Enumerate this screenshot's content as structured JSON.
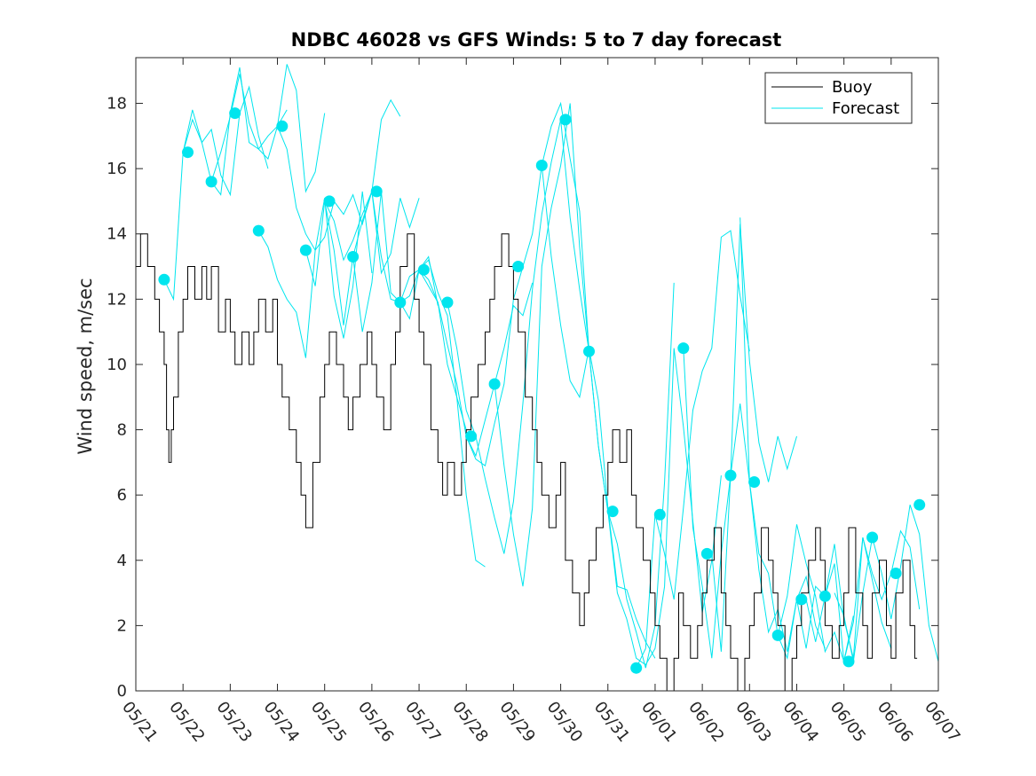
{
  "chart_data": {
    "type": "line",
    "title": "NDBC 46028 vs GFS Winds: 5 to 7 day forecast",
    "xlabel": "",
    "ylabel": "Wind speed, m/sec",
    "xlim": [
      0,
      17
    ],
    "ylim": [
      0,
      19.4
    ],
    "x_tick_values": [
      0,
      1,
      2,
      3,
      4,
      5,
      6,
      7,
      8,
      9,
      10,
      11,
      12,
      13,
      14,
      15,
      16,
      17
    ],
    "x_tick_labels": [
      "05/21",
      "05/22",
      "05/23",
      "05/24",
      "05/25",
      "05/26",
      "05/27",
      "05/28",
      "05/29",
      "05/30",
      "05/31",
      "06/01",
      "06/02",
      "06/03",
      "06/04",
      "06/05",
      "06/06",
      "06/07"
    ],
    "y_ticks": [
      0,
      2,
      4,
      6,
      8,
      10,
      12,
      14,
      16,
      18
    ],
    "grid": false,
    "legend_position": "top-right",
    "legend": [
      {
        "label": "Buoy",
        "color": "#000000"
      },
      {
        "label": "Forecast",
        "color": "#00e5ee"
      }
    ],
    "buoy": {
      "name": "Buoy",
      "color": "#000000",
      "x": [
        0,
        0.1,
        0.25,
        0.4,
        0.5,
        0.6,
        0.65,
        0.7,
        0.75,
        0.8,
        0.9,
        1.0,
        1.1,
        1.25,
        1.4,
        1.5,
        1.6,
        1.75,
        1.9,
        2.0,
        2.1,
        2.25,
        2.4,
        2.5,
        2.6,
        2.75,
        2.9,
        3.0,
        3.1,
        3.25,
        3.4,
        3.5,
        3.6,
        3.75,
        3.9,
        4.0,
        4.1,
        4.25,
        4.4,
        4.5,
        4.6,
        4.75,
        4.9,
        5.0,
        5.1,
        5.25,
        5.4,
        5.5,
        5.6,
        5.75,
        5.9,
        6.0,
        6.1,
        6.25,
        6.4,
        6.5,
        6.6,
        6.75,
        6.9,
        7.0,
        7.1,
        7.25,
        7.4,
        7.5,
        7.6,
        7.75,
        7.9,
        8.0,
        8.1,
        8.25,
        8.4,
        8.5,
        8.6,
        8.75,
        8.9,
        9.0,
        9.1,
        9.25,
        9.4,
        9.5,
        9.6,
        9.75,
        9.9,
        10.0,
        10.1,
        10.25,
        10.4,
        10.5,
        10.6,
        10.75,
        10.9,
        11.0,
        11.1,
        11.25,
        11.4,
        11.5,
        11.6,
        11.75,
        11.9,
        12.0,
        12.1,
        12.25,
        12.4,
        12.5,
        12.6,
        12.75,
        12.9,
        13.0,
        13.1,
        13.25,
        13.4,
        13.5,
        13.6,
        13.75,
        13.9,
        14.0,
        14.1,
        14.25,
        14.4,
        14.5,
        14.6,
        14.75,
        14.9,
        15.0,
        15.1,
        15.25,
        15.4,
        15.5,
        15.6,
        15.75,
        15.9,
        16.0,
        16.1,
        16.25,
        16.4,
        16.5
      ],
      "y": [
        13,
        14,
        13,
        12,
        11,
        10,
        8,
        7,
        8,
        9,
        11,
        12,
        13,
        12,
        13,
        12,
        13,
        11,
        12,
        11,
        10,
        11,
        10,
        11,
        12,
        11,
        12,
        10,
        9,
        8,
        7,
        6,
        5,
        7,
        9,
        10,
        11,
        10,
        9,
        8,
        9,
        10,
        11,
        10,
        9,
        8,
        10,
        11,
        13,
        14,
        12,
        11,
        10,
        8,
        7,
        6,
        7,
        6,
        7,
        8,
        9,
        10,
        11,
        12,
        13,
        14,
        13,
        12,
        11,
        9,
        8,
        7,
        6,
        5,
        6,
        7,
        4,
        3,
        2,
        3,
        4,
        5,
        6,
        7,
        8,
        7,
        8,
        6,
        5,
        4,
        3,
        2,
        1,
        0,
        1,
        3,
        2,
        1,
        2,
        3,
        4,
        5,
        3,
        2,
        1,
        0,
        1,
        2,
        3,
        5,
        4,
        3,
        2,
        0,
        1,
        2,
        3,
        4,
        5,
        4,
        2,
        1,
        2,
        3,
        5,
        3,
        2,
        1,
        3,
        4,
        2,
        1,
        3,
        4,
        2,
        1
      ]
    },
    "forecast_series": [
      {
        "name": "Forecast",
        "x": [
          0.6,
          0.8,
          1.0,
          1.2,
          1.4,
          1.6,
          1.8,
          2.0,
          2.2,
          2.4,
          2.6,
          2.8
        ],
        "y": [
          12.6,
          12.0,
          16.5,
          17.5,
          16.8,
          17.2,
          15.8,
          15.2,
          17.7,
          18.5,
          17.0,
          16.0
        ]
      },
      {
        "name": "Forecast",
        "x": [
          1.0,
          1.2,
          1.4,
          1.6,
          1.8,
          2.0,
          2.2,
          2.4,
          2.6,
          2.8,
          3.0,
          3.2
        ],
        "y": [
          16.5,
          17.8,
          16.8,
          15.6,
          16.5,
          17.6,
          18.9,
          17.4,
          16.6,
          16.3,
          17.3,
          17.8
        ]
      },
      {
        "name": "Forecast",
        "x": [
          1.6,
          1.8,
          2.0,
          2.2,
          2.4,
          2.6,
          2.8,
          3.0,
          3.2,
          3.4,
          3.6,
          3.8,
          4.0
        ],
        "y": [
          15.6,
          15.2,
          17.7,
          19.1,
          16.8,
          16.6,
          17.0,
          17.3,
          19.2,
          18.4,
          15.3,
          15.9,
          17.7
        ]
      },
      {
        "name": "Forecast",
        "x": [
          2.6,
          2.8,
          3.0,
          3.2,
          3.4,
          3.6,
          3.8,
          4.0,
          4.2,
          4.4,
          4.6,
          4.8,
          5.0
        ],
        "y": [
          14.1,
          13.6,
          12.6,
          12.0,
          11.6,
          10.2,
          13.5,
          15.1,
          12.1,
          10.8,
          12.4,
          15.3,
          12.8
        ]
      },
      {
        "name": "Forecast",
        "x": [
          3.0,
          3.2,
          3.4,
          3.6,
          3.8,
          4.0,
          4.2,
          4.4,
          4.6,
          4.8,
          5.0,
          5.2,
          5.4,
          5.6
        ],
        "y": [
          17.3,
          16.6,
          14.8,
          14.0,
          13.5,
          13.9,
          15.0,
          14.6,
          15.2,
          14.3,
          15.3,
          17.5,
          18.1,
          17.6
        ]
      },
      {
        "name": "Forecast",
        "x": [
          3.6,
          3.8,
          4.0,
          4.2,
          4.4,
          4.6,
          4.8,
          5.0,
          5.2,
          5.4,
          5.6,
          5.8,
          6.0
        ],
        "y": [
          13.5,
          12.4,
          15.0,
          14.4,
          13.2,
          13.8,
          14.6,
          15.3,
          12.8,
          13.4,
          15.1,
          14.2,
          15.1
        ]
      },
      {
        "name": "Forecast",
        "x": [
          4.0,
          4.2,
          4.4,
          4.6,
          4.8,
          5.0,
          5.2,
          5.4,
          5.6,
          5.8,
          6.0,
          6.2,
          6.4
        ],
        "y": [
          15.0,
          13.5,
          11.2,
          13.3,
          14.4,
          15.3,
          13.3,
          12.0,
          11.9,
          12.1,
          12.9,
          13.3,
          11.8
        ]
      },
      {
        "name": "Forecast",
        "x": [
          4.6,
          4.8,
          5.0,
          5.2,
          5.4,
          5.6,
          5.8,
          6.0,
          6.2,
          6.4,
          6.6,
          6.8,
          7.0
        ],
        "y": [
          13.3,
          11.0,
          12.5,
          15.3,
          12.2,
          11.9,
          12.7,
          12.9,
          12.6,
          11.9,
          10.0,
          9.0,
          8.0
        ]
      },
      {
        "name": "Forecast",
        "x": [
          5.6,
          5.8,
          6.0,
          6.2,
          6.4,
          6.6,
          6.8,
          7.0,
          7.2,
          7.4
        ],
        "y": [
          11.9,
          11.4,
          12.9,
          13.2,
          12.2,
          11.5,
          9.0,
          6.0,
          4.0,
          3.8
        ]
      },
      {
        "name": "Forecast",
        "x": [
          6.0,
          6.2,
          6.4,
          6.6,
          6.8,
          7.0,
          7.2,
          7.4,
          7.6,
          7.8,
          8.0,
          8.2,
          8.4
        ],
        "y": [
          12.9,
          12.4,
          11.9,
          10.6,
          9.4,
          7.8,
          7.2,
          8.3,
          9.4,
          10.5,
          11.8,
          11.5,
          12.5
        ]
      },
      {
        "name": "Forecast",
        "x": [
          6.6,
          6.8,
          7.0,
          7.2,
          7.4,
          7.6,
          7.8,
          8.0,
          8.2,
          8.4,
          8.6,
          8.8,
          9.0
        ],
        "y": [
          11.9,
          10.5,
          8.6,
          7.8,
          6.5,
          5.3,
          4.2,
          5.8,
          8.8,
          12.3,
          14.6,
          16.2,
          17.5
        ]
      },
      {
        "name": "Forecast",
        "x": [
          7.0,
          7.2,
          7.4,
          7.6,
          7.8,
          8.0,
          8.2,
          8.4,
          8.6,
          8.8,
          9.0,
          9.2,
          9.4,
          9.6
        ],
        "y": [
          7.8,
          7.1,
          6.9,
          8.2,
          9.4,
          12.0,
          13.0,
          14.0,
          16.1,
          17.3,
          18.0,
          16.3,
          14.7,
          10.4
        ]
      },
      {
        "name": "Forecast",
        "x": [
          7.6,
          7.8,
          8.0,
          8.2,
          8.4,
          8.6,
          8.8,
          9.0,
          9.2,
          9.4,
          9.6,
          9.8,
          10.0
        ],
        "y": [
          9.4,
          6.9,
          4.8,
          3.2,
          5.6,
          13.0,
          14.8,
          16.1,
          18.0,
          13.6,
          10.4,
          7.5,
          5.5
        ]
      },
      {
        "name": "Forecast",
        "x": [
          8.6,
          8.8,
          9.0,
          9.2,
          9.4,
          9.6,
          9.8,
          10.0,
          10.2,
          10.4,
          10.6,
          10.8,
          11.0
        ],
        "y": [
          16.1,
          13.3,
          11.2,
          9.5,
          9.0,
          10.5,
          8.9,
          5.6,
          3.2,
          3.1,
          2.2,
          1.5,
          1.0
        ]
      },
      {
        "name": "Forecast",
        "x": [
          9.0,
          9.2,
          9.4,
          9.6,
          9.8,
          10.0,
          10.2,
          10.4,
          10.6,
          10.8,
          11.0,
          11.2,
          11.4
        ],
        "y": [
          17.5,
          14.5,
          12.3,
          10.4,
          7.5,
          5.5,
          4.5,
          2.8,
          1.8,
          0.7,
          2.0,
          6.4,
          12.5
        ]
      },
      {
        "name": "Forecast",
        "x": [
          10.0,
          10.2,
          10.4,
          10.6,
          10.8,
          11.0,
          11.2,
          11.4,
          11.6,
          11.8,
          12.0,
          12.2,
          12.4
        ],
        "y": [
          5.5,
          3.0,
          2.2,
          1.0,
          0.8,
          1.3,
          3.2,
          10.5,
          8.1,
          5.2,
          2.4,
          4.0,
          6.6
        ]
      },
      {
        "name": "Forecast",
        "x": [
          10.6,
          10.8,
          11.0,
          11.2,
          11.4,
          11.6,
          11.8,
          12.0,
          12.2,
          12.4,
          12.6,
          12.8,
          13.0
        ],
        "y": [
          0.7,
          1.3,
          5.4,
          4.2,
          2.8,
          5.6,
          8.6,
          9.8,
          10.5,
          13.9,
          14.1,
          12.1,
          10.4
        ]
      },
      {
        "name": "Forecast",
        "x": [
          11.6,
          11.8,
          12.0,
          12.2,
          12.4,
          12.6,
          12.8,
          13.0,
          13.2,
          13.4,
          13.6,
          13.8,
          14.0
        ],
        "y": [
          10.5,
          5.0,
          3.2,
          1.0,
          4.2,
          6.6,
          14.3,
          10.1,
          7.6,
          6.4,
          7.8,
          6.8,
          7.8
        ]
      },
      {
        "name": "Forecast",
        "x": [
          12.2,
          12.4,
          12.6,
          12.8,
          13.0,
          13.2,
          13.4,
          13.6,
          13.8,
          14.0,
          14.2,
          14.4,
          14.6
        ],
        "y": [
          4.2,
          1.2,
          6.6,
          8.8,
          6.4,
          3.7,
          1.8,
          2.5,
          1.2,
          2.8,
          3.5,
          2.0,
          1.3
        ]
      },
      {
        "name": "Forecast",
        "x": [
          12.8,
          13.0,
          13.2,
          13.4,
          13.6,
          13.8,
          14.0,
          14.2,
          14.4,
          14.6,
          14.8,
          15.0,
          15.2
        ],
        "y": [
          14.5,
          6.4,
          4.2,
          3.6,
          1.7,
          2.9,
          5.1,
          3.9,
          2.9,
          1.2,
          1.8,
          0.9,
          2.3
        ]
      },
      {
        "name": "Forecast",
        "x": [
          13.6,
          13.8,
          14.0,
          14.2,
          14.4,
          14.6,
          14.8,
          15.0,
          15.2,
          15.4,
          15.6,
          15.8,
          16.0
        ],
        "y": [
          1.7,
          1.0,
          2.8,
          1.3,
          3.2,
          2.9,
          4.5,
          2.2,
          1.0,
          4.7,
          3.4,
          2.1,
          1.3
        ]
      },
      {
        "name": "Forecast",
        "x": [
          14.2,
          14.4,
          14.6,
          14.8,
          15.0,
          15.2,
          15.4,
          15.6,
          15.8,
          16.0,
          16.2,
          16.4,
          16.6
        ],
        "y": [
          2.8,
          1.5,
          2.9,
          3.9,
          0.9,
          2.1,
          4.7,
          3.6,
          2.8,
          3.6,
          4.9,
          4.4,
          2.5
        ]
      },
      {
        "name": "Forecast",
        "x": [
          14.8,
          15.0,
          15.2,
          15.4,
          15.6,
          15.8,
          16.0,
          16.2,
          16.4,
          16.6,
          16.8,
          17.0
        ],
        "y": [
          3.0,
          2.3,
          0.9,
          3.0,
          4.7,
          3.6,
          2.2,
          3.8,
          5.7,
          4.8,
          2.0,
          0.9
        ]
      }
    ],
    "forecast_markers": {
      "name": "Forecast",
      "x": [
        0.6,
        1.1,
        1.6,
        2.1,
        2.6,
        3.1,
        3.6,
        4.1,
        4.6,
        5.1,
        5.6,
        6.1,
        6.6,
        7.1,
        7.6,
        8.1,
        8.6,
        9.1,
        9.6,
        10.1,
        10.6,
        11.1,
        11.6,
        12.1,
        12.6,
        13.1,
        13.6,
        14.1,
        14.6,
        15.1,
        15.6,
        16.1,
        16.6
      ],
      "y": [
        12.6,
        16.5,
        15.6,
        17.7,
        14.1,
        17.3,
        13.5,
        15.0,
        13.3,
        15.3,
        11.9,
        12.9,
        11.9,
        7.8,
        9.4,
        13.0,
        16.1,
        17.5,
        10.4,
        5.5,
        0.7,
        5.4,
        10.5,
        4.2,
        6.6,
        6.4,
        1.7,
        2.8,
        2.9,
        0.9,
        4.7,
        3.6,
        5.7
      ]
    }
  }
}
